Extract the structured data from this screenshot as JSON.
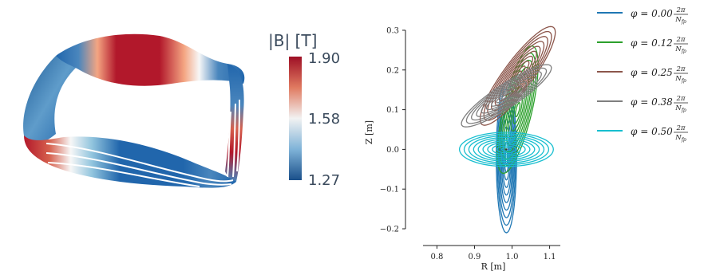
{
  "colorbar": {
    "title": "|B| [T]",
    "ticks": [
      "1.90",
      "1.58",
      "1.27"
    ],
    "values": [
      1.9,
      1.58,
      1.27
    ],
    "colors": [
      "#b2182b",
      "#f4a582",
      "#f7f7f7",
      "#92c5de",
      "#2166ac"
    ]
  },
  "chart_data": {
    "type": "line",
    "title": "",
    "xlabel": "R [m]",
    "ylabel": "Z [m]",
    "xlim": [
      0.78,
      1.12
    ],
    "ylim": [
      -0.21,
      0.32
    ],
    "xticks": [
      0.8,
      0.9,
      1.0,
      1.1
    ],
    "yticks": [
      -0.2,
      -0.1,
      0.0,
      0.1,
      0.2,
      0.3
    ],
    "xtick_labels": [
      "0.8",
      "0.9",
      "1.0",
      "1.1"
    ],
    "ytick_labels": [
      "−0.2",
      "−0.1",
      "0.0",
      "0.1",
      "0.2",
      "0.3"
    ],
    "grid": false,
    "legend_position": "outside-right-top",
    "magnetic_axis": {
      "R": 0.985,
      "Z": 0.0
    },
    "series": [
      {
        "name": "φ = 0.00 2π/N_fp",
        "name_prefix": "φ = 0.00",
        "color": "#1f77b4",
        "center": [
          0.985,
          -0.02
        ],
        "semi_axes": [
          0.027,
          0.19
        ],
        "tilt_deg": 0,
        "rings": 10
      },
      {
        "name": "φ = 0.12 2π/N_fp",
        "name_prefix": "φ = 0.12",
        "color": "#2ca02c",
        "center": [
          1.015,
          0.1
        ],
        "semi_axes": [
          0.038,
          0.165
        ],
        "tilt_deg": -14,
        "rings": 9
      },
      {
        "name": "φ = 0.25 2π/N_fp",
        "name_prefix": "φ = 0.25",
        "color": "#8c564b",
        "center": [
          1.015,
          0.185
        ],
        "semi_axes": [
          0.038,
          0.155
        ],
        "tilt_deg": -38,
        "rings": 10
      },
      {
        "name": "φ = 0.38 2π/N_fp",
        "name_prefix": "φ = 0.38",
        "color": "#7f7f7f",
        "center": [
          0.985,
          0.135
        ],
        "semi_axes": [
          0.03,
          0.14
        ],
        "tilt_deg": -58,
        "rings": 9
      },
      {
        "name": "φ = 0.50 2π/N_fp",
        "name_prefix": "φ = 0.50",
        "color": "#17becf",
        "center": [
          0.985,
          0.0
        ],
        "semi_axes": [
          0.125,
          0.043
        ],
        "tilt_deg": 0,
        "rings": 10
      }
    ]
  }
}
